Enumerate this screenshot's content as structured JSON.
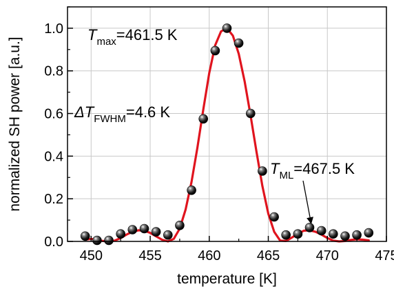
{
  "chart_data": {
    "type": "scatter",
    "title": "",
    "xlabel": "temperature [K]",
    "ylabel": "normalized SH power [a.u.]",
    "xlim": [
      448,
      475
    ],
    "ylim": [
      0,
      1.1
    ],
    "xticks": [
      450,
      455,
      460,
      465,
      470,
      475
    ],
    "yticks": [
      0.0,
      0.2,
      0.4,
      0.6,
      0.8,
      1.0
    ],
    "xtick_labels": [
      "450",
      "455",
      "460",
      "465",
      "470",
      "475"
    ],
    "ytick_labels": [
      "0.0",
      "0.2",
      "0.4",
      "0.6",
      "0.8",
      "1.0"
    ],
    "grid": true,
    "legend": "none",
    "series": [
      {
        "kind": "markers",
        "color": "#1a1a1a",
        "x": [
          449.5,
          450.5,
          451.5,
          452.5,
          453.5,
          454.5,
          455.5,
          456.5,
          457.5,
          458.5,
          459.5,
          460.5,
          461.5,
          462.5,
          463.5,
          464.5,
          465.5,
          466.5,
          467.5,
          468.5,
          469.5,
          470.5,
          471.5,
          472.5,
          473.5
        ],
        "y": [
          0.025,
          0.005,
          0.005,
          0.035,
          0.055,
          0.06,
          0.045,
          0.03,
          0.075,
          0.24,
          0.575,
          0.895,
          1.0,
          0.93,
          0.6,
          0.33,
          0.115,
          0.03,
          0.035,
          0.065,
          0.05,
          0.035,
          0.025,
          0.03,
          0.04
        ]
      },
      {
        "kind": "fit-line",
        "color": "#e0141e",
        "x": [
          449.5,
          450.0,
          450.5,
          451.0,
          451.5,
          452.0,
          452.5,
          453.0,
          453.5,
          454.0,
          454.5,
          455.0,
          455.5,
          456.0,
          456.5,
          457.0,
          457.5,
          458.0,
          458.5,
          459.0,
          459.5,
          460.0,
          460.5,
          461.0,
          461.5,
          462.0,
          462.5,
          463.0,
          463.5,
          464.0,
          464.5,
          465.0,
          465.5,
          466.0,
          466.5,
          467.0,
          467.5,
          468.0,
          468.5,
          469.0,
          469.5,
          470.0,
          470.5,
          471.0,
          471.5,
          472.0,
          472.5,
          473.0,
          473.5
        ],
        "y": [
          0.008,
          0.012,
          0.008,
          0.002,
          0.0,
          0.004,
          0.016,
          0.032,
          0.045,
          0.052,
          0.05,
          0.04,
          0.024,
          0.008,
          0.0,
          0.012,
          0.06,
          0.15,
          0.28,
          0.44,
          0.62,
          0.79,
          0.92,
          0.985,
          1.0,
          0.965,
          0.88,
          0.75,
          0.59,
          0.42,
          0.26,
          0.13,
          0.045,
          0.004,
          0.002,
          0.018,
          0.036,
          0.05,
          0.052,
          0.045,
          0.032,
          0.016,
          0.004,
          0.0,
          0.002,
          0.007,
          0.01,
          0.008,
          0.005
        ]
      }
    ],
    "annotations": [
      {
        "id": "tmax",
        "sym": "T",
        "sub": "max",
        "text": "=461.5 K"
      },
      {
        "id": "fwhm",
        "sym": "ΔT",
        "sub": "FWHM",
        "text": "=4.6 K"
      },
      {
        "id": "tml",
        "sym": "T",
        "sub": "ML",
        "text": "=467.5 K",
        "arrow_to": [
          468.5,
          0.055
        ]
      }
    ]
  }
}
